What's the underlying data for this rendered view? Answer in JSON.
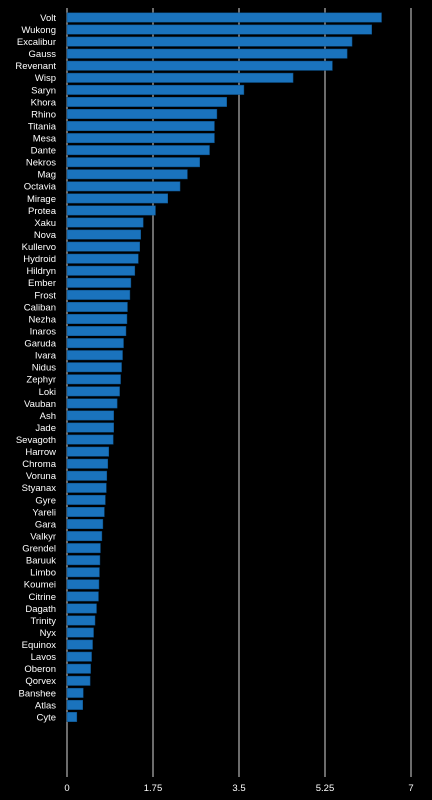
{
  "chart_data": {
    "type": "bar",
    "orientation": "horizontal",
    "title": "",
    "xlabel": "",
    "ylabel": "",
    "xlim": [
      0,
      7
    ],
    "x_ticks": [
      0,
      1.75,
      3.5,
      5.25,
      7
    ],
    "x_tick_labels": [
      "0",
      "1.75",
      "3.5",
      "5.25",
      "7"
    ],
    "grid": "vertical",
    "bar_color": "#1a73bd",
    "gridline_color": "#d9d9d9",
    "background_color": "#000000",
    "text_color": "#ffffff",
    "categories": [
      "Volt",
      "Wukong",
      "Excalibur",
      "Gauss",
      "Revenant",
      "Wisp",
      "Saryn",
      "Khora",
      "Rhino",
      "Titania",
      "Mesa",
      "Dante",
      "Nekros",
      "Mag",
      "Octavia",
      "Mirage",
      "Protea",
      "Xaku",
      "Nova",
      "Kullervo",
      "Hydroid",
      "Hildryn",
      "Ember",
      "Frost",
      "Caliban",
      "Nezha",
      "Inaros",
      "Garuda",
      "Ivara",
      "Nidus",
      "Zephyr",
      "Loki",
      "Vauban",
      "Ash",
      "Jade",
      "Sevagoth",
      "Harrow",
      "Chroma",
      "Voruna",
      "Styanax",
      "Gyre",
      "Yareli",
      "Gara",
      "Valkyr",
      "Grendel",
      "Baruuk",
      "Limbo",
      "Koumei",
      "Citrine",
      "Dagath",
      "Trinity",
      "Nyx",
      "Equinox",
      "Lavos",
      "Oberon",
      "Qorvex",
      "Banshee",
      "Atlas",
      "Cyte"
    ],
    "values": [
      6.4,
      6.2,
      5.8,
      5.7,
      5.4,
      4.6,
      3.6,
      3.25,
      3.05,
      3.0,
      3.0,
      2.9,
      2.7,
      2.45,
      2.3,
      2.05,
      1.8,
      1.55,
      1.5,
      1.48,
      1.45,
      1.38,
      1.3,
      1.28,
      1.23,
      1.22,
      1.2,
      1.15,
      1.13,
      1.11,
      1.09,
      1.07,
      1.02,
      0.95,
      0.95,
      0.94,
      0.85,
      0.83,
      0.81,
      0.8,
      0.78,
      0.76,
      0.73,
      0.71,
      0.68,
      0.67,
      0.66,
      0.65,
      0.64,
      0.6,
      0.57,
      0.54,
      0.52,
      0.5,
      0.48,
      0.47,
      0.33,
      0.32,
      0.2
    ]
  }
}
